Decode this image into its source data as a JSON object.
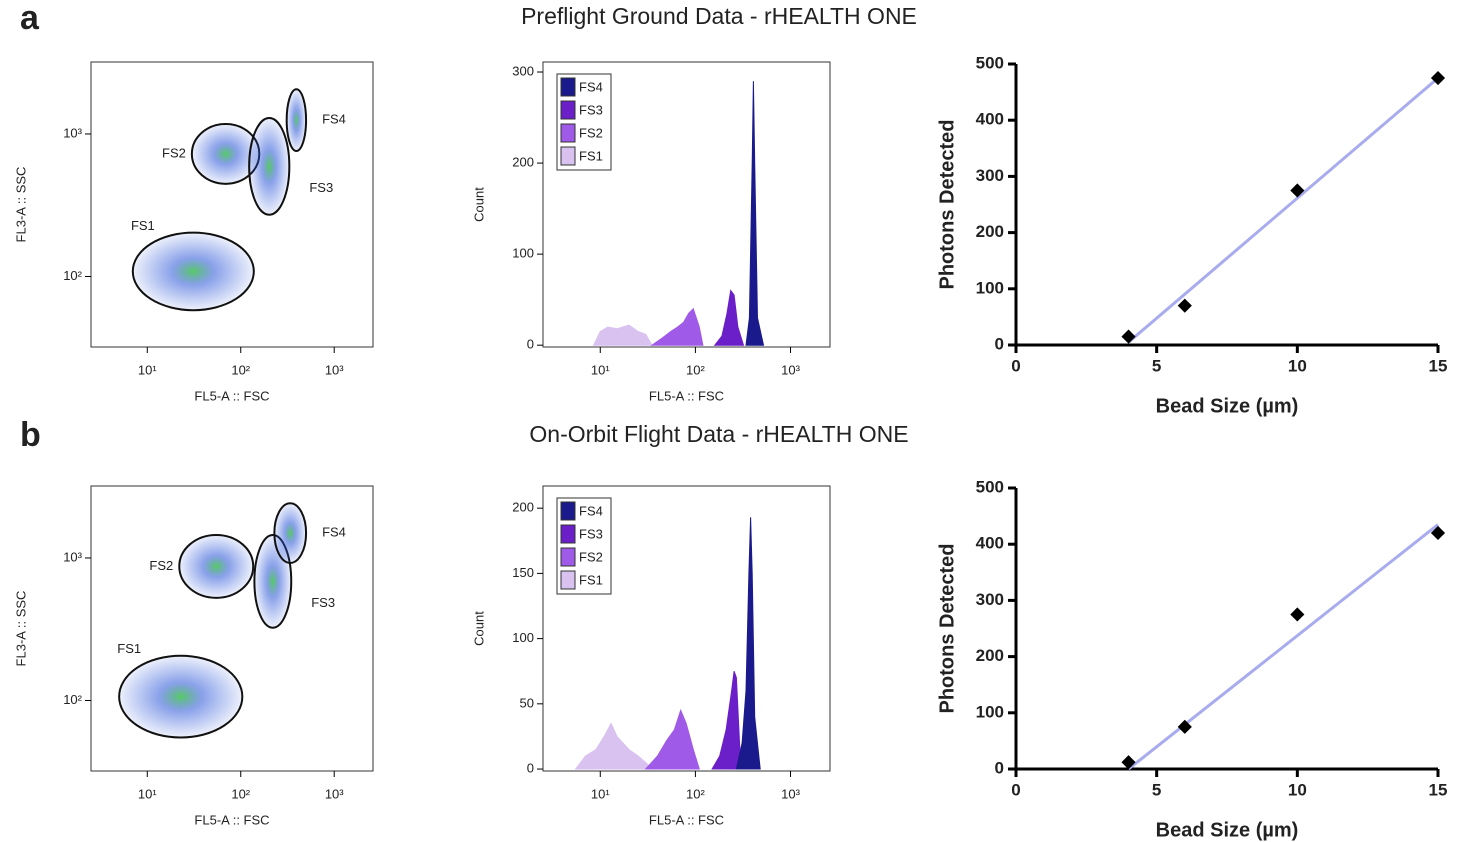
{
  "rows": [
    {
      "label": "a",
      "title": "Preflight Ground Data - rHEALTH ONE"
    },
    {
      "label": "b",
      "title": "On-Orbit Flight Data - rHEALTH ONE"
    }
  ],
  "chart_data": [
    {
      "type": "density",
      "xlabel": "FL5-A :: FSC",
      "ylabel": "FL3-A :: SSC",
      "log_x": true,
      "log_y": true,
      "xlim": [
        2.5,
        2600
      ],
      "ylim": [
        32,
        3200
      ],
      "xticks": [
        {
          "value": 10,
          "label": "10¹"
        },
        {
          "value": 100,
          "label": "10²"
        },
        {
          "value": 1000,
          "label": "10³"
        }
      ],
      "yticks": [
        {
          "value": 100,
          "label": "10²"
        },
        {
          "value": 1000,
          "label": "10³"
        }
      ],
      "gates": [
        {
          "name": "FS1",
          "x": [
            7,
            138
          ],
          "y": [
            58,
            203
          ]
        },
        {
          "name": "FS2",
          "x": [
            30,
            158
          ],
          "y": [
            447,
            1175
          ]
        },
        {
          "name": "FS3",
          "x": [
            123,
            331
          ],
          "y": [
            271,
            1295
          ]
        },
        {
          "name": "FS4",
          "x": [
            310,
            500
          ],
          "y": [
            760,
            2060
          ]
        }
      ]
    },
    {
      "type": "area",
      "xlabel": "FL5-A :: FSC",
      "ylabel": "Count",
      "log_x": true,
      "xlim": [
        2.5,
        2600
      ],
      "ylim": [
        -2,
        311
      ],
      "xticks": [
        {
          "value": 10,
          "label": "10¹"
        },
        {
          "value": 100,
          "label": "10²"
        },
        {
          "value": 1000,
          "label": "10³"
        }
      ],
      "yticks": [
        0,
        100,
        200,
        300
      ],
      "legend": "upper left",
      "series": [
        {
          "name": "FS4",
          "color": "#1a1a8c",
          "x": [
            340,
            370,
            395,
            407,
            420,
            450,
            520
          ],
          "values": [
            0,
            30,
            200,
            290,
            200,
            30,
            0
          ]
        },
        {
          "name": "FS3",
          "color": "#6a1fc9",
          "x": [
            160,
            190,
            215,
            235,
            255,
            280,
            320
          ],
          "values": [
            0,
            10,
            35,
            60,
            55,
            20,
            0
          ]
        },
        {
          "name": "FS2",
          "color": "#a05ae8",
          "x": [
            35,
            45,
            55,
            65,
            75,
            85,
            95,
            110,
            120
          ],
          "values": [
            0,
            8,
            15,
            20,
            25,
            35,
            40,
            20,
            0
          ]
        },
        {
          "name": "FS1",
          "color": "#d9c2f0",
          "x": [
            8.5,
            10,
            12,
            15,
            20,
            25,
            30,
            35
          ],
          "values": [
            0,
            15,
            20,
            18,
            22,
            15,
            12,
            0
          ]
        }
      ]
    },
    {
      "type": "scatter",
      "xlabel": "Bead Size (µm)",
      "ylabel": "Photons Detected",
      "xlim": [
        0,
        15
      ],
      "ylim": [
        0,
        500
      ],
      "xticks": [
        0,
        5,
        10,
        15
      ],
      "yticks": [
        0,
        100,
        200,
        300,
        400,
        500
      ],
      "color": "#000000",
      "x": [
        4,
        6,
        10,
        15
      ],
      "values": [
        15,
        70,
        275,
        475
      ],
      "fit": {
        "color": "#a8acee",
        "x": [
          4,
          15
        ],
        "values": [
          5,
          475
        ]
      }
    },
    {
      "type": "density",
      "xlabel": "FL5-A :: FSC",
      "ylabel": "FL3-A :: SSC",
      "log_x": true,
      "log_y": true,
      "xlim": [
        2.5,
        2600
      ],
      "ylim": [
        32,
        3200
      ],
      "xticks": [
        {
          "value": 10,
          "label": "10¹"
        },
        {
          "value": 100,
          "label": "10²"
        },
        {
          "value": 1000,
          "label": "10³"
        }
      ],
      "yticks": [
        {
          "value": 100,
          "label": "10²"
        },
        {
          "value": 1000,
          "label": "10³"
        }
      ],
      "gates": [
        {
          "name": "FS1",
          "x": [
            5,
            104
          ],
          "y": [
            55,
            206
          ]
        },
        {
          "name": "FS2",
          "x": [
            22,
            136
          ],
          "y": [
            525,
            1450
          ]
        },
        {
          "name": "FS3",
          "x": [
            140,
            347
          ],
          "y": [
            324,
            1450
          ]
        },
        {
          "name": "FS4",
          "x": [
            229,
            500
          ],
          "y": [
            923,
            2420
          ]
        }
      ]
    },
    {
      "type": "area",
      "xlabel": "FL5-A :: FSC",
      "ylabel": "Count",
      "log_x": true,
      "xlim": [
        2.5,
        2600
      ],
      "ylim": [
        -1.5,
        217
      ],
      "xticks": [
        {
          "value": 10,
          "label": "10¹"
        },
        {
          "value": 100,
          "label": "10²"
        },
        {
          "value": 1000,
          "label": "10³"
        }
      ],
      "yticks": [
        0,
        50,
        100,
        150,
        200
      ],
      "legend": "upper left",
      "series": [
        {
          "name": "FS4",
          "color": "#1a1a8c",
          "x": [
            270,
            310,
            340,
            365,
            380,
            395,
            420,
            480
          ],
          "values": [
            0,
            20,
            60,
            150,
            193,
            150,
            40,
            0
          ]
        },
        {
          "name": "FS3",
          "color": "#6a1fc9",
          "x": [
            150,
            180,
            210,
            240,
            255,
            270,
            300
          ],
          "values": [
            0,
            10,
            30,
            60,
            75,
            70,
            0
          ]
        },
        {
          "name": "FS2",
          "color": "#a05ae8",
          "x": [
            30,
            40,
            50,
            60,
            70,
            80,
            95,
            110
          ],
          "values": [
            0,
            10,
            22,
            30,
            45,
            35,
            15,
            0
          ]
        },
        {
          "name": "FS1",
          "color": "#d9c2f0",
          "x": [
            5.5,
            7,
            9,
            11,
            13,
            15,
            20,
            25,
            30,
            35
          ],
          "values": [
            0,
            10,
            15,
            25,
            35,
            25,
            15,
            10,
            5,
            0
          ]
        }
      ]
    },
    {
      "type": "scatter",
      "xlabel": "Bead Size (µm)",
      "ylabel": "Photons Detected",
      "xlim": [
        0,
        15
      ],
      "ylim": [
        0,
        500
      ],
      "xticks": [
        0,
        5,
        10,
        15
      ],
      "yticks": [
        0,
        100,
        200,
        300,
        400,
        500
      ],
      "color": "#000000",
      "x": [
        4,
        6,
        10,
        15
      ],
      "values": [
        12,
        75,
        275,
        420
      ],
      "fit": {
        "color": "#a8acee",
        "x": [
          4,
          15
        ],
        "values": [
          0,
          435
        ]
      }
    }
  ]
}
